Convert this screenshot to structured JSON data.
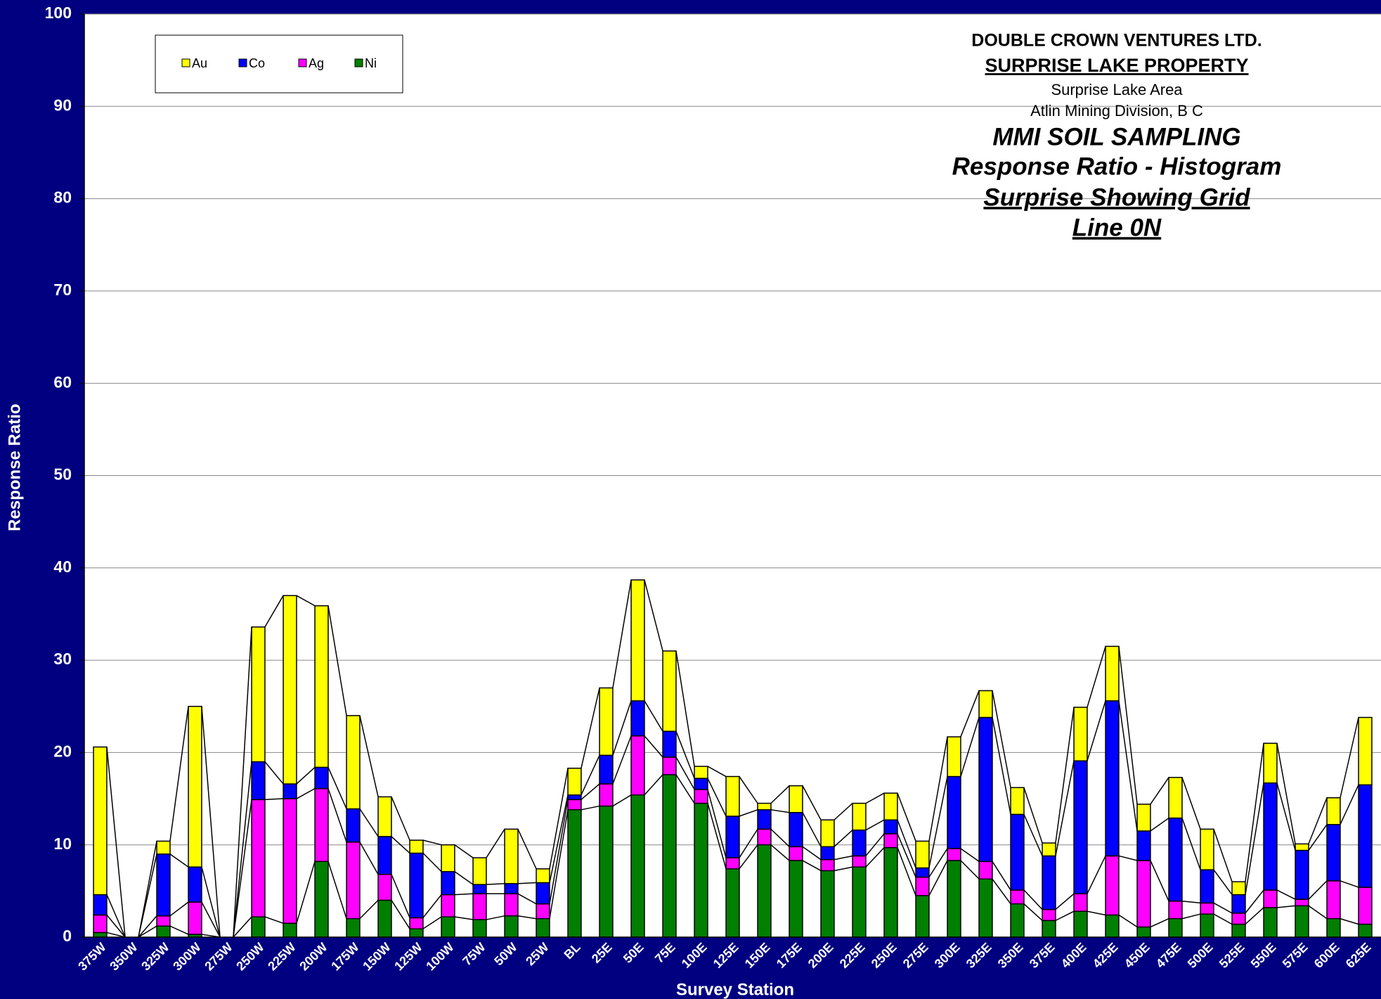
{
  "chart_data": {
    "type": "stacked_bar",
    "title_block": [
      "DOUBLE CROWN VENTURES LTD.",
      "SURPRISE LAKE PROPERTY",
      "Surprise Lake Area",
      "Atlin Mining Division, B C",
      "MMI SOIL SAMPLING",
      "Response Ratio - Histogram",
      "Surprise Showing Grid",
      "Line 0N"
    ],
    "x_label": "Survey Station",
    "y_label": "Response Ratio",
    "categories": [
      "375W",
      "350W",
      "325W",
      "300W",
      "275W",
      "250W",
      "225W",
      "200W",
      "175W",
      "150W",
      "125W",
      "100W",
      "75W",
      "50W",
      "25W",
      "BL",
      "25E",
      "50E",
      "75E",
      "100E",
      "125E",
      "150E",
      "175E",
      "200E",
      "225E",
      "250E",
      "275E",
      "300E",
      "325E",
      "350E",
      "375E",
      "400E",
      "425E",
      "450E",
      "475E",
      "500E",
      "525E",
      "550E",
      "575E",
      "600E",
      "625E"
    ],
    "series": [
      {
        "name": "Au",
        "color": "#ffff00",
        "values": [
          16.0,
          0,
          1.4,
          17.4,
          0,
          14.6,
          20.4,
          17.5,
          10.1,
          4.3,
          1.4,
          2.9,
          2.9,
          5.9,
          1.5,
          2.9,
          7.3,
          13.1,
          8.7,
          1.3,
          4.3,
          0.7,
          2.9,
          2.9,
          2.9,
          2.9,
          2.9,
          4.3,
          2.9,
          2.9,
          1.4,
          5.8,
          5.9,
          2.9,
          4.4,
          4.4,
          1.4,
          4.3,
          0.7,
          2.9,
          7.3
        ]
      },
      {
        "name": "Co",
        "color": "#0000ff",
        "values": [
          2.2,
          0,
          6.7,
          3.8,
          0,
          4.1,
          1.6,
          2.3,
          3.6,
          4.1,
          7.0,
          2.5,
          1.0,
          1.1,
          2.3,
          0.5,
          3.1,
          3.8,
          2.8,
          1.2,
          4.5,
          2.1,
          3.7,
          1.4,
          2.8,
          1.5,
          1.0,
          7.8,
          15.6,
          8.2,
          5.8,
          14.4,
          16.8,
          3.2,
          9.0,
          3.6,
          2.0,
          11.6,
          5.3,
          6.1,
          11.1
        ]
      },
      {
        "name": "Ag",
        "color": "#ff00ff",
        "values": [
          1.9,
          0,
          1.1,
          3.5,
          0,
          12.7,
          13.5,
          7.9,
          8.3,
          2.8,
          1.2,
          2.4,
          2.8,
          2.4,
          1.6,
          1.1,
          2.4,
          6.4,
          1.9,
          1.5,
          1.2,
          1.7,
          1.5,
          1.2,
          1.2,
          1.5,
          2.0,
          1.3,
          1.9,
          1.5,
          1.2,
          1.9,
          6.4,
          7.2,
          1.9,
          1.2,
          1.2,
          1.9,
          0.7,
          4.1,
          4.0
        ]
      },
      {
        "name": "Ni",
        "color": "#007f00",
        "values": [
          0.5,
          0,
          1.2,
          0.3,
          0,
          2.2,
          1.5,
          8.2,
          2.0,
          4.0,
          0.9,
          2.2,
          1.9,
          2.3,
          2.0,
          13.8,
          14.2,
          15.4,
          17.6,
          14.5,
          7.4,
          10.0,
          8.3,
          7.2,
          7.6,
          9.7,
          4.5,
          8.3,
          6.3,
          3.6,
          1.8,
          2.8,
          2.4,
          1.1,
          2.0,
          2.5,
          1.4,
          3.2,
          3.4,
          2.0,
          1.4
        ]
      }
    ],
    "ylim": [
      0,
      100
    ],
    "yticks": [
      0,
      10,
      20,
      30,
      40,
      50,
      60,
      70,
      80,
      90,
      100
    ],
    "grid": true,
    "legend": "top-left"
  }
}
